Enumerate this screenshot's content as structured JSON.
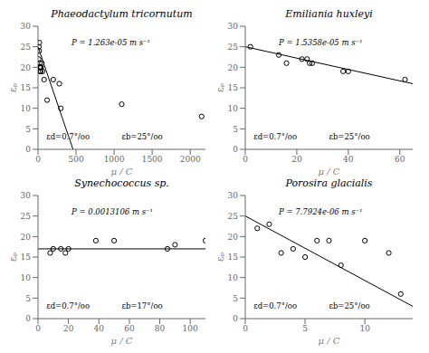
{
  "chart_data": [
    {
      "type": "scatter",
      "title": "Phaeodactylum tricornutum",
      "xlabel": "μ / C",
      "ylabel": "εₚ",
      "annotations": [
        "P = 1.263e-05 m s⁻¹",
        "εd=0.7°/oo",
        "εb=25°/oo"
      ],
      "xlim": [
        0,
        2200
      ],
      "ylim": [
        0,
        30
      ],
      "xticks": [
        0,
        500,
        1000,
        1500,
        2000
      ],
      "yticks": [
        0,
        5,
        10,
        15,
        20,
        25,
        30
      ],
      "grid": false,
      "series": [
        {
          "type": "scatter",
          "marker": "open_circle",
          "color": "#000000",
          "x": [
            8,
            12,
            15,
            18,
            20,
            22,
            25,
            28,
            30,
            35,
            40,
            50,
            60,
            80,
            120,
            200,
            280,
            300,
            1100,
            2150
          ],
          "values": [
            22,
            25,
            24,
            26,
            20,
            21,
            19,
            20,
            20,
            19,
            20,
            21,
            19,
            17,
            12,
            17,
            16,
            10,
            11,
            8
          ]
        },
        {
          "type": "line",
          "color": "#000000",
          "x": [
            0,
            460
          ],
          "values": [
            25,
            0
          ]
        }
      ]
    },
    {
      "type": "scatter",
      "title": "Emiliania huxleyi",
      "xlabel": "μ / C",
      "ylabel": "εₚ",
      "annotations": [
        "P = 1.5358e-05 m s⁻¹",
        "εd=0.7°/oo",
        "εb=25°/oo"
      ],
      "xlim": [
        0,
        65
      ],
      "ylim": [
        0,
        30
      ],
      "xticks": [
        0,
        20,
        40,
        60
      ],
      "yticks": [
        0,
        5,
        10,
        15,
        20,
        25,
        30
      ],
      "grid": false,
      "series": [
        {
          "type": "scatter",
          "marker": "open_circle",
          "color": "#000000",
          "x": [
            2,
            13,
            16,
            22,
            24,
            25,
            26,
            38,
            40,
            62
          ],
          "values": [
            25,
            23,
            21,
            22,
            22,
            21,
            21,
            19,
            19,
            17
          ]
        },
        {
          "type": "line",
          "color": "#000000",
          "x": [
            0,
            65
          ],
          "values": [
            25,
            16
          ]
        }
      ]
    },
    {
      "type": "scatter",
      "title": "Synechococcus sp.",
      "xlabel": "μ / C",
      "ylabel": "εₚ",
      "annotations": [
        "P = 0.0013106 m s⁻¹",
        "εd=0.7°/oo",
        "εb=17°/oo"
      ],
      "xlim": [
        0,
        110
      ],
      "ylim": [
        0,
        30
      ],
      "xticks": [
        0,
        20,
        40,
        60,
        80,
        100
      ],
      "yticks": [
        0,
        5,
        10,
        15,
        20,
        25,
        30
      ],
      "grid": false,
      "series": [
        {
          "type": "scatter",
          "marker": "open_circle",
          "color": "#000000",
          "x": [
            8,
            10,
            15,
            18,
            20,
            38,
            50,
            85,
            90,
            110
          ],
          "values": [
            16,
            17,
            17,
            16,
            17,
            19,
            19,
            17,
            18,
            19
          ]
        },
        {
          "type": "line",
          "color": "#000000",
          "x": [
            0,
            110
          ],
          "values": [
            17,
            17
          ]
        }
      ]
    },
    {
      "type": "scatter",
      "title": "Porosira glacialis",
      "xlabel": "μ / C",
      "ylabel": "εₚ",
      "annotations": [
        "P = 7.7924e-06 m s⁻¹",
        "εd=0.7°/oo",
        "εb=25°/oo"
      ],
      "xlim": [
        0,
        14
      ],
      "ylim": [
        0,
        30
      ],
      "xticks": [
        0,
        5,
        10
      ],
      "yticks": [
        0,
        5,
        10,
        15,
        20,
        25,
        30
      ],
      "grid": false,
      "series": [
        {
          "type": "scatter",
          "marker": "open_circle",
          "color": "#000000",
          "x": [
            1,
            2,
            3,
            4,
            5,
            6,
            7,
            8,
            10,
            12,
            13
          ],
          "values": [
            22,
            23,
            16,
            17,
            15,
            19,
            19,
            13,
            19,
            16,
            6
          ]
        },
        {
          "type": "line",
          "color": "#000000",
          "x": [
            0,
            14
          ],
          "values": [
            25,
            3
          ]
        }
      ]
    }
  ]
}
